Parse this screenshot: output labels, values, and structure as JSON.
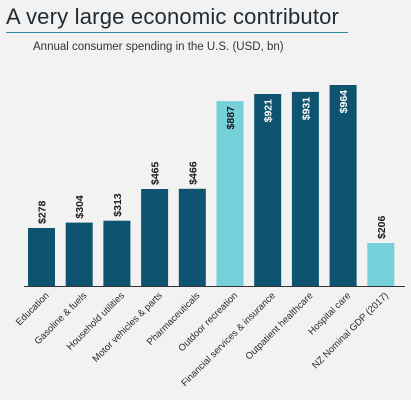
{
  "title": "A very large economic contributor",
  "subtitle": "Annual consumer spending in the U.S. (USD, bn)",
  "colors": {
    "dark": "#0e5470",
    "highlight": "#76d0da",
    "axis": "#333333",
    "rule": "#2a8a9e"
  },
  "chart_data": {
    "type": "bar",
    "categories": [
      "Education",
      "Gasoline & fuels",
      "Household utilities",
      "Motor vehicles & parts",
      "Pharmaceuticals",
      "Outdoor recreation",
      "Financial services & insurance",
      "Outpatient healthcare",
      "Hospital care",
      "NZ Nominal GDP (2017)"
    ],
    "values": [
      278,
      304,
      313,
      465,
      466,
      887,
      921,
      931,
      964,
      206
    ],
    "labels": [
      "$278",
      "$304",
      "$313",
      "$465",
      "$466",
      "$887",
      "$921",
      "$931",
      "$964",
      "$206"
    ],
    "highlighted": [
      false,
      false,
      false,
      false,
      false,
      true,
      false,
      false,
      false,
      true
    ],
    "title": "A very large economic contributor",
    "subtitle": "Annual consumer spending in the U.S. (USD, bn)",
    "xlabel": "",
    "ylabel": "",
    "ylim": [
      0,
      1000
    ],
    "grid": false,
    "legend": "none"
  }
}
